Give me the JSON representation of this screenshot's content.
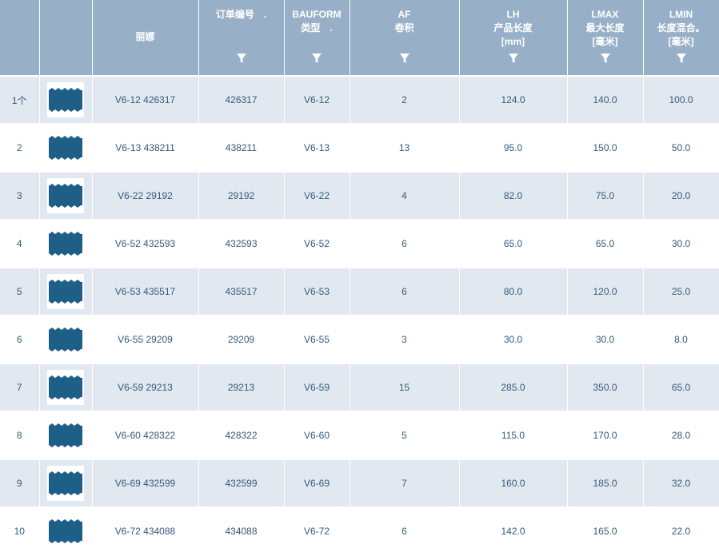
{
  "columns": [
    {
      "key": "idx",
      "lines": [
        ""
      ],
      "filter": false
    },
    {
      "key": "img",
      "lines": [
        ""
      ],
      "filter": false
    },
    {
      "key": "name",
      "lines": [
        "丽娜"
      ],
      "filter": false
    },
    {
      "key": "order",
      "lines": [
        "订单编号　."
      ],
      "filter": true
    },
    {
      "key": "bauform",
      "lines": [
        "BAUFORM",
        "类型　."
      ],
      "filter": true
    },
    {
      "key": "af",
      "lines": [
        "AF",
        "卷积"
      ],
      "filter": true
    },
    {
      "key": "lh",
      "lines": [
        "LH",
        "产品长度",
        "[mm]"
      ],
      "filter": true
    },
    {
      "key": "lmax",
      "lines": [
        "LMAX",
        "最大长度",
        "[毫米]"
      ],
      "filter": true
    },
    {
      "key": "lmin",
      "lines": [
        "LMIN",
        "长度混合。",
        "[毫米]"
      ],
      "filter": true
    }
  ],
  "rows": [
    {
      "idx": "1个",
      "name": "V6-12 426317",
      "order": "426317",
      "bauform": "V6-12",
      "af": "2",
      "lh": "124.0",
      "lmax": "140.0",
      "lmin": "100.0"
    },
    {
      "idx": "2",
      "name": "V6-13 438211",
      "order": "438211",
      "bauform": "V6-13",
      "af": "13",
      "lh": "95.0",
      "lmax": "150.0",
      "lmin": "50.0"
    },
    {
      "idx": "3",
      "name": "V6-22 29192",
      "order": "29192",
      "bauform": "V6-22",
      "af": "4",
      "lh": "82.0",
      "lmax": "75.0",
      "lmin": "20.0"
    },
    {
      "idx": "4",
      "name": "V6-52 432593",
      "order": "432593",
      "bauform": "V6-52",
      "af": "6",
      "lh": "65.0",
      "lmax": "65.0",
      "lmin": "30.0"
    },
    {
      "idx": "5",
      "name": "V6-53 435517",
      "order": "435517",
      "bauform": "V6-53",
      "af": "6",
      "lh": "80.0",
      "lmax": "120.0",
      "lmin": "25.0"
    },
    {
      "idx": "6",
      "name": "V6-55 29209",
      "order": "29209",
      "bauform": "V6-55",
      "af": "3",
      "lh": "30.0",
      "lmax": "30.0",
      "lmin": "8.0"
    },
    {
      "idx": "7",
      "name": "V6-59 29213",
      "order": "29213",
      "bauform": "V6-59",
      "af": "15",
      "lh": "285.0",
      "lmax": "350.0",
      "lmin": "65.0"
    },
    {
      "idx": "8",
      "name": "V6-60 428322",
      "order": "428322",
      "bauform": "V6-60",
      "af": "5",
      "lh": "115.0",
      "lmax": "170.0",
      "lmin": "28.0"
    },
    {
      "idx": "9",
      "name": "V6-69 432599",
      "order": "432599",
      "bauform": "V6-69",
      "af": "7",
      "lh": "160.0",
      "lmax": "185.0",
      "lmin": "32.0"
    },
    {
      "idx": "10",
      "name": "V6-72 434088",
      "order": "434088",
      "bauform": "V6-72",
      "af": "6",
      "lh": "142.0",
      "lmax": "165.0",
      "lmin": "22.0"
    }
  ],
  "icons": {
    "filter": "filter-icon",
    "product": "bellows-thumbnail-icon"
  },
  "colors": {
    "header_bg": "#98b0c7",
    "row_alt_bg": "#e2e8f0",
    "text": "#355a7b",
    "product": "#1e5f87"
  }
}
